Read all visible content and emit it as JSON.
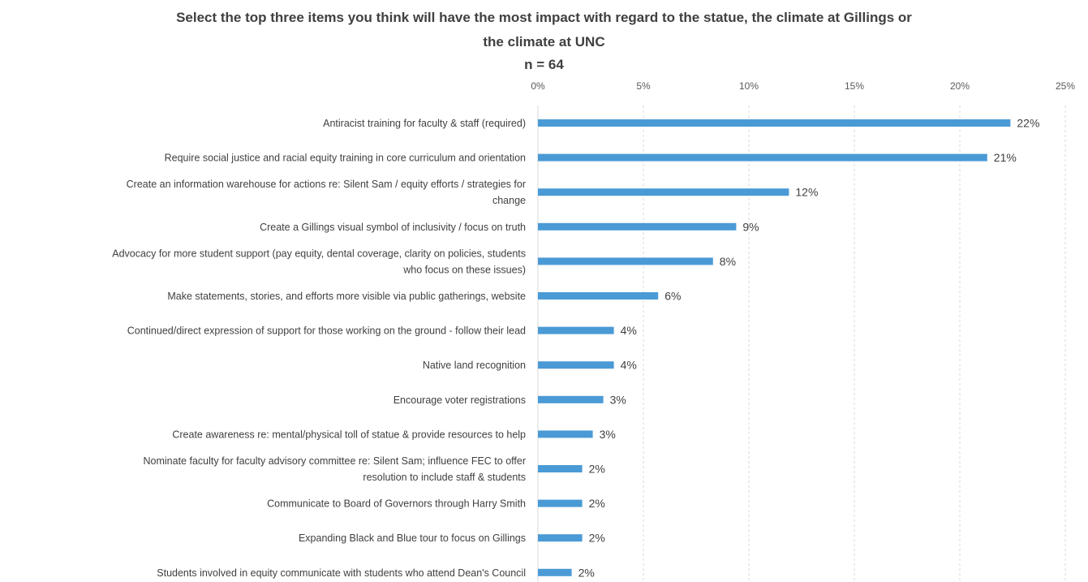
{
  "chart_data": {
    "type": "bar",
    "orientation": "horizontal",
    "title_lines": [
      "Select the top three items you think will have the most impact with regard to the statue, the climate at Gillings or",
      "the climate at UNC",
      "n = 64"
    ],
    "x_ticks": [
      "0%",
      "5%",
      "10%",
      "15%",
      "20%",
      "25%"
    ],
    "xlim": [
      0,
      25
    ],
    "x_axis_position": "top",
    "grid": "vertical dashed",
    "bar_color": "#4a9ad6",
    "categories": [
      [
        "Antiracist training for faculty & staff (required)"
      ],
      [
        "Require social justice and racial equity training in core curriculum and orientation"
      ],
      [
        "Create an information warehouse for actions re: Silent Sam / equity efforts / strategies for",
        "change"
      ],
      [
        "Create a Gillings visual symbol of inclusivity / focus on truth"
      ],
      [
        "Advocacy for more student support (pay equity, dental coverage, clarity on policies, students",
        "who focus on these issues)"
      ],
      [
        "Make statements, stories, and efforts more visible via public gatherings, website"
      ],
      [
        "Continued/direct expression of support for those working on the ground - follow their lead"
      ],
      [
        "Native land recognition"
      ],
      [
        "Encourage voter registrations"
      ],
      [
        "Create awareness re: mental/physical toll of statue & provide resources to help"
      ],
      [
        "Nominate faculty for faculty advisory committee re: Silent Sam; influence FEC to offer",
        "resolution to include staff & students"
      ],
      [
        "Communicate to Board of Governors through Harry Smith"
      ],
      [
        "Expanding Black and Blue tour to focus on Gillings"
      ],
      [
        "Students involved in equity communicate with students who attend Dean's Council"
      ]
    ],
    "values": [
      22.4,
      21.3,
      11.9,
      9.4,
      8.3,
      5.7,
      3.6,
      3.6,
      3.1,
      2.6,
      2.1,
      2.1,
      2.1,
      1.6
    ],
    "data_labels": [
      "22%",
      "21%",
      "12%",
      "9%",
      "8%",
      "6%",
      "4%",
      "4%",
      "3%",
      "3%",
      "2%",
      "2%",
      "2%",
      "2%"
    ]
  }
}
